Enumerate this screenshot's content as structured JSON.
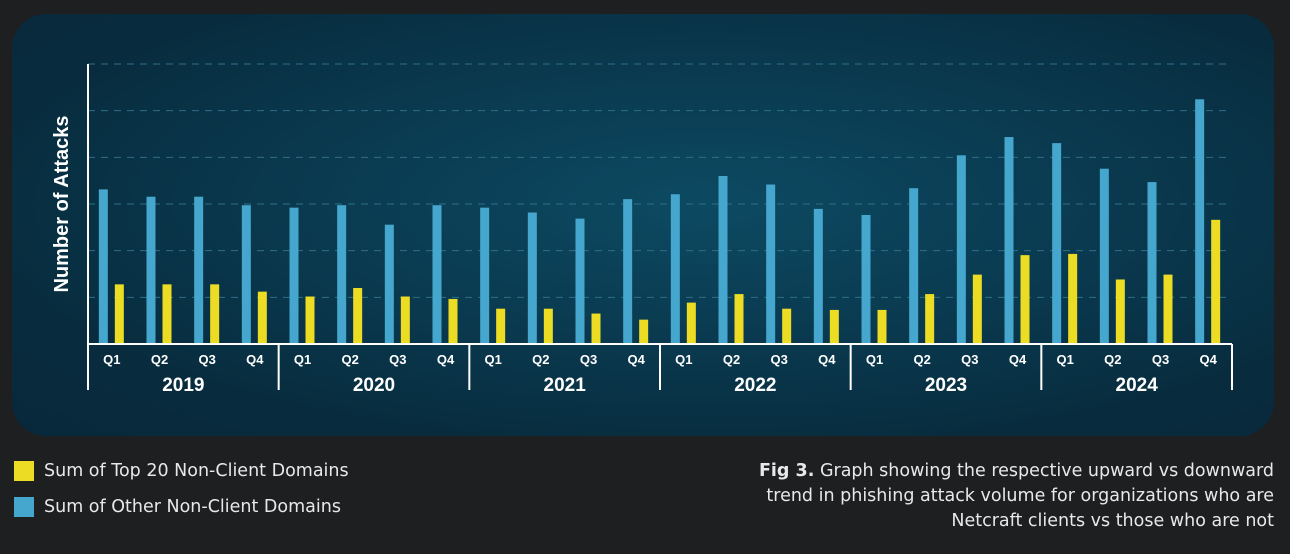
{
  "chart_data": {
    "type": "bar",
    "ylabel": "Number of Attacks",
    "xlabel": "",
    "grid": true,
    "ylim": [
      0,
      11.5
    ],
    "categories": [
      "Q1",
      "Q2",
      "Q3",
      "Q4",
      "Q1",
      "Q2",
      "Q3",
      "Q4",
      "Q1",
      "Q2",
      "Q3",
      "Q4",
      "Q1",
      "Q2",
      "Q3",
      "Q4",
      "Q1",
      "Q2",
      "Q3",
      "Q4",
      "Q1",
      "Q2",
      "Q3",
      "Q4"
    ],
    "groups": [
      {
        "label": "2019",
        "size": 4
      },
      {
        "label": "2020",
        "size": 4
      },
      {
        "label": "2021",
        "size": 4
      },
      {
        "label": "2022",
        "size": 4
      },
      {
        "label": "2023",
        "size": 4
      },
      {
        "label": "2024",
        "size": 4
      }
    ],
    "series": [
      {
        "name": "Sum of Other Non-Client Domains",
        "color": "#45a7cd",
        "values": [
          6.35,
          6.05,
          6.05,
          5.7,
          5.6,
          5.7,
          4.9,
          5.7,
          5.6,
          5.4,
          5.15,
          5.95,
          6.15,
          6.9,
          6.55,
          5.55,
          5.3,
          6.4,
          7.75,
          8.5,
          8.25,
          7.2,
          6.65,
          10.05
        ]
      },
      {
        "name": "Sum of Top 20 Non-Client Domains",
        "color": "#ecdd24",
        "values": [
          2.45,
          2.45,
          2.45,
          2.15,
          1.95,
          2.3,
          1.95,
          1.85,
          1.45,
          1.45,
          1.25,
          1.0,
          1.7,
          2.05,
          1.45,
          1.4,
          1.4,
          2.05,
          2.85,
          3.65,
          3.7,
          2.65,
          2.85,
          5.1
        ]
      }
    ]
  },
  "legend": [
    {
      "label": "Sum of Top 20 Non-Client Domains",
      "color": "#ecdd24"
    },
    {
      "label": "Sum of Other Non-Client Domains",
      "color": "#45a7cd"
    }
  ],
  "caption": {
    "prefix": "Fig 3.",
    "text": " Graph showing the respective upward vs downward trend in phishing attack volume for organizations who are Netcraft clients vs those who are not"
  }
}
